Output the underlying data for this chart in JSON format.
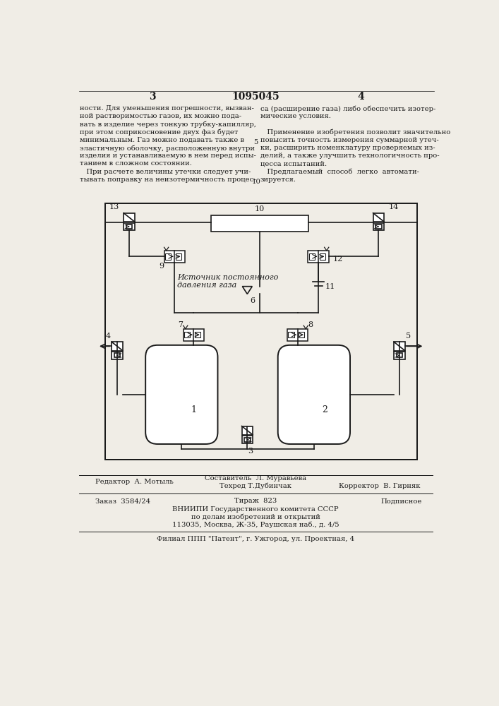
{
  "page_number_left": "3",
  "patent_number": "1095045",
  "page_number_right": "4",
  "left_column_text": [
    "ности. Для уменьшения погрешности, вызван-",
    "ной растворимостью газов, их можно пода-",
    "вать в изделие через тонкую трубку-капилляр,",
    "при этом соприкосновение двух фаз будет",
    "минимальным. Газ можно подавать также в",
    "эластичную оболочку, расположенную внутри",
    "изделия и устанавливаемую в нем перед испы-",
    "танием в сложном состоянии.",
    "   При расчете величины утечки следует учи-",
    "тывать поправку на неизотермичность процес-"
  ],
  "line_numbers": [
    "",
    "",
    "",
    "",
    "5",
    "",
    "",
    "",
    "",
    "10"
  ],
  "right_column_text": [
    "са (расширение газа) либо обеспечить изотер-",
    "мические условия.",
    "",
    "   Применение изобретения позволит значительно",
    "повысить точность измерения суммарной утеч-",
    "ки, расширить номенклатуру проверяемых из-",
    "делий, а также улучшить технологичность про-",
    "цесса испытаний.",
    "   Предлагаемый  способ  легко  автомати-",
    "зируется."
  ],
  "footer_editor": "Редактор  А. Мотыль",
  "footer_composer": "Составитель  Л. Муравьева",
  "footer_techred": "Техред Т.Дубинчак",
  "footer_corrector": "Корректор  В. Гирняк",
  "footer_order": "Заказ  3584/24",
  "footer_tirazh": "Тираж  823",
  "footer_podpisnoe": "Подписное",
  "footer_vniiipi": "ВНИИПИ Государственного комитета СССР",
  "footer_dela": "по делам изобретений и открытий",
  "footer_address": "113035, Москва, Ж-35, Раушская наб., д. 4/5",
  "footer_filial": "Филиал ППП \"Патент\", г. Ужгород, ул. Проектная, 4",
  "bg_color": "#f0ede6",
  "text_color": "#1a1a1a",
  "diagram_label_source_line1": "Источник постоянного",
  "diagram_label_source_line2": "давления газа"
}
